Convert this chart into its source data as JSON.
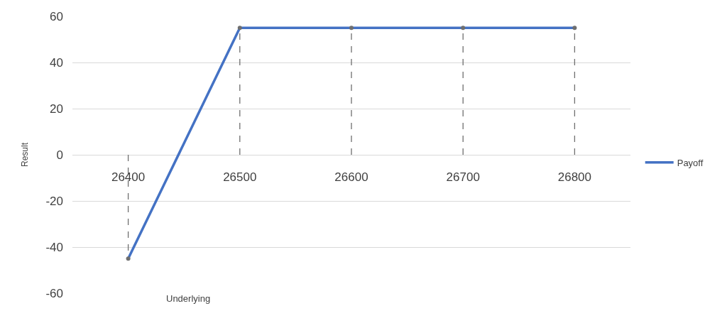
{
  "chart_data": {
    "type": "line",
    "xlabel": "Underlying",
    "ylabel": "Result",
    "categories": [
      "26400",
      "26500",
      "26600",
      "26700",
      "26800"
    ],
    "series": [
      {
        "name": "Payoff",
        "color": "#4472c4",
        "values": [
          -45,
          55,
          55,
          55,
          55
        ]
      },
      {
        "type": "lollipop",
        "color": "#6f6f6f",
        "line_style": "dashed",
        "marker": "circle",
        "values": [
          -45,
          55,
          55,
          55,
          55
        ]
      }
    ],
    "ylim": [
      -60,
      60
    ],
    "yticks": [
      -60,
      -40,
      -20,
      0,
      20,
      40,
      60
    ],
    "grid": "y",
    "legend": "right"
  }
}
